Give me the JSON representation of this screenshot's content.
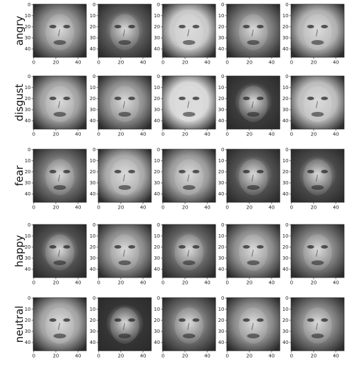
{
  "chart_data": {
    "type": "image-grid",
    "title": "",
    "rows": [
      {
        "label": "angry",
        "tone": [
          "#8a8a8a",
          "#5a5a5a",
          "#c8c8c8",
          "#7a7a7a",
          "#b0b0b0"
        ]
      },
      {
        "label": "disgust",
        "tone": [
          "#a0a0a0",
          "#8c8c8c",
          "#d8d8d8",
          "#3c3c3c",
          "#bcbcbc"
        ]
      },
      {
        "label": "fear",
        "tone": [
          "#6e6e6e",
          "#a8a8a8",
          "#9a9a9a",
          "#505050",
          "#4a4a4a"
        ]
      },
      {
        "label": "happy",
        "tone": [
          "#505050",
          "#8a8a8a",
          "#646464",
          "#8c8c8c",
          "#7a7a7a"
        ]
      },
      {
        "label": "neutral",
        "tone": [
          "#a2a2a2",
          "#353535",
          "#6c6c6c",
          "#8a8a8a",
          "#7c7c7c"
        ]
      }
    ],
    "columns": 5,
    "x_ticks": [
      "0",
      "20",
      "40"
    ],
    "y_ticks": [
      "0",
      "10",
      "20",
      "30",
      "40"
    ],
    "xlim": [
      0,
      48
    ],
    "ylim": [
      0,
      48
    ]
  }
}
